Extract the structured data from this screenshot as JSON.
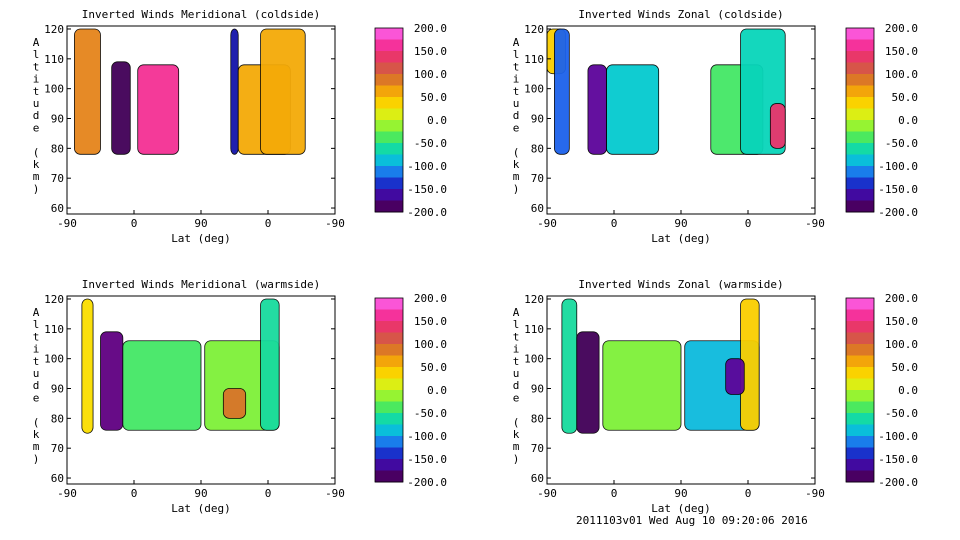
{
  "footer": {
    "run_stamp": "2011103v01 Wed Aug 10 09:20:06 2016"
  },
  "chart_data": [
    {
      "type": "heatmap",
      "title": "Inverted Winds Meridional (coldside)",
      "xlabel": "Lat (deg)",
      "ylabel": "Altitude (km)",
      "x_tick_labels": [
        "-90",
        "0",
        "90",
        "0",
        "-90"
      ],
      "y_ticks": [
        60,
        70,
        80,
        90,
        100,
        110,
        120
      ],
      "ylim": [
        58,
        121
      ],
      "colorbar": {
        "min": -200,
        "max": 200,
        "tick_labels": [
          "200.0",
          "150.0",
          "100.0",
          "50.0",
          "0.0",
          "-50.0",
          "-100.0",
          "-150.0",
          "-200.0"
        ]
      },
      "regions": [
        {
          "lat_range": [
            -80,
            -45
          ],
          "alt_range": [
            78,
            120
          ],
          "value": 80
        },
        {
          "lat_range": [
            -30,
            -5
          ],
          "alt_range": [
            78,
            109
          ],
          "value": -190
        },
        {
          "lat_range": [
            5,
            60
          ],
          "alt_range": [
            78,
            108
          ],
          "value": 160
        },
        {
          "lat_range": [
            130,
            140
          ],
          "alt_range": [
            78,
            120
          ],
          "value": -150
        },
        {
          "lat_range": [
            140,
            210
          ],
          "alt_range": [
            78,
            108
          ],
          "value": 60
        },
        {
          "lat_range": [
            170,
            230
          ],
          "alt_range": [
            78,
            120
          ],
          "value": 60
        }
      ]
    },
    {
      "type": "heatmap",
      "title": "Inverted Winds Zonal (coldside)",
      "xlabel": "Lat (deg)",
      "ylabel": "Altitude (km)",
      "x_tick_labels": [
        "-90",
        "0",
        "90",
        "0",
        "-90"
      ],
      "y_ticks": [
        60,
        70,
        80,
        90,
        100,
        110,
        120
      ],
      "ylim": [
        58,
        121
      ],
      "colorbar": {
        "min": -200,
        "max": 200,
        "tick_labels": [
          "200.0",
          "150.0",
          "100.0",
          "50.0",
          "0.0",
          "-50.0",
          "-100.0",
          "-150.0",
          "-200.0"
        ]
      },
      "regions": [
        {
          "lat_range": [
            -90,
            -65
          ],
          "alt_range": [
            105,
            120
          ],
          "value": 40
        },
        {
          "lat_range": [
            -80,
            -60
          ],
          "alt_range": [
            78,
            120
          ],
          "value": -120
        },
        {
          "lat_range": [
            -35,
            -10
          ],
          "alt_range": [
            78,
            108
          ],
          "value": -170
        },
        {
          "lat_range": [
            -10,
            60
          ],
          "alt_range": [
            78,
            108
          ],
          "value": -80
        },
        {
          "lat_range": [
            130,
            200
          ],
          "alt_range": [
            78,
            108
          ],
          "value": -40
        },
        {
          "lat_range": [
            170,
            230
          ],
          "alt_range": [
            78,
            120
          ],
          "value": -70
        },
        {
          "lat_range": [
            210,
            230
          ],
          "alt_range": [
            80,
            95
          ],
          "value": 140
        }
      ]
    },
    {
      "type": "heatmap",
      "title": "Inverted Winds Meridional (warmside)",
      "xlabel": "Lat (deg)",
      "ylabel": "Altitude (km)",
      "x_tick_labels": [
        "-90",
        "0",
        "90",
        "0",
        "-90"
      ],
      "y_ticks": [
        60,
        70,
        80,
        90,
        100,
        110,
        120
      ],
      "ylim": [
        58,
        121
      ],
      "colorbar": {
        "min": -200,
        "max": 200,
        "tick_labels": [
          "200.0",
          "150.0",
          "100.0",
          "50.0",
          "0.0",
          "-50.0",
          "-100.0",
          "-150.0",
          "-200.0"
        ]
      },
      "regions": [
        {
          "lat_range": [
            -70,
            -55
          ],
          "alt_range": [
            75,
            120
          ],
          "value": 30
        },
        {
          "lat_range": [
            -45,
            -15
          ],
          "alt_range": [
            76,
            109
          ],
          "value": -180
        },
        {
          "lat_range": [
            -15,
            90
          ],
          "alt_range": [
            76,
            106
          ],
          "value": -40
        },
        {
          "lat_range": [
            95,
            195
          ],
          "alt_range": [
            76,
            106
          ],
          "value": -20
        },
        {
          "lat_range": [
            170,
            195
          ],
          "alt_range": [
            76,
            120
          ],
          "value": -60
        },
        {
          "lat_range": [
            120,
            150
          ],
          "alt_range": [
            80,
            90
          ],
          "value": 90
        }
      ]
    },
    {
      "type": "heatmap",
      "title": "Inverted Winds Zonal (warmside)",
      "xlabel": "Lat (deg)",
      "ylabel": "Altitude (km)",
      "x_tick_labels": [
        "-90",
        "0",
        "90",
        "0",
        "-90"
      ],
      "y_ticks": [
        60,
        70,
        80,
        90,
        100,
        110,
        120
      ],
      "ylim": [
        58,
        121
      ],
      "colorbar": {
        "min": -200,
        "max": 200,
        "tick_labels": [
          "200.0",
          "150.0",
          "100.0",
          "50.0",
          "0.0",
          "-50.0",
          "-100.0",
          "-150.0",
          "-200.0"
        ]
      },
      "regions": [
        {
          "lat_range": [
            -70,
            -50
          ],
          "alt_range": [
            75,
            120
          ],
          "value": -60
        },
        {
          "lat_range": [
            -50,
            -20
          ],
          "alt_range": [
            75,
            109
          ],
          "value": -190
        },
        {
          "lat_range": [
            -15,
            90
          ],
          "alt_range": [
            76,
            106
          ],
          "value": -20
        },
        {
          "lat_range": [
            95,
            195
          ],
          "alt_range": [
            76,
            106
          ],
          "value": -90
        },
        {
          "lat_range": [
            170,
            195
          ],
          "alt_range": [
            76,
            120
          ],
          "value": 40
        },
        {
          "lat_range": [
            150,
            175
          ],
          "alt_range": [
            88,
            100
          ],
          "value": -170
        }
      ]
    }
  ]
}
